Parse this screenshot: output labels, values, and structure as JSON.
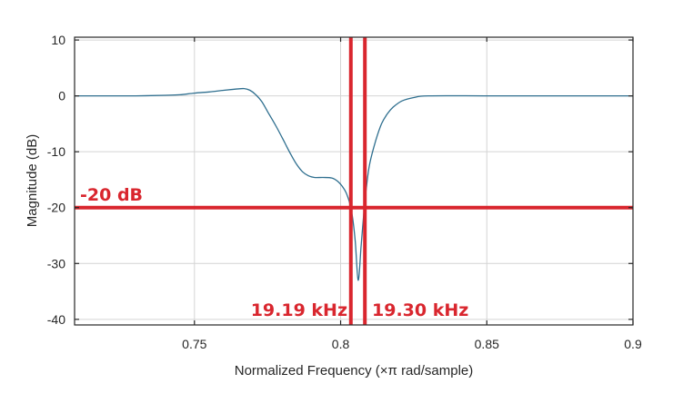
{
  "chart_data": {
    "type": "line",
    "title": "",
    "xlabel": "Normalized Frequency (×π rad/sample)",
    "ylabel": "Magnitude (dB)",
    "xlim": [
      0.709,
      0.9
    ],
    "ylim": [
      -41,
      10.5
    ],
    "xticks": [
      0.75,
      0.8,
      0.85,
      0.9
    ],
    "xtick_labels": [
      "0.75",
      "0.8",
      "0.85",
      "0.9"
    ],
    "yticks": [
      10,
      0,
      -10,
      -20,
      -30,
      -40
    ],
    "ytick_labels": [
      "10",
      "0",
      "-10",
      "-20",
      "-30",
      "-40"
    ],
    "grid": true,
    "series": [
      {
        "name": "magnitude",
        "color": "#2f6f8f",
        "x": [
          0.709,
          0.72,
          0.73,
          0.74,
          0.745,
          0.75,
          0.755,
          0.76,
          0.764,
          0.767,
          0.769,
          0.771,
          0.773,
          0.775,
          0.778,
          0.781,
          0.783,
          0.785,
          0.787,
          0.789,
          0.791,
          0.794,
          0.797,
          0.799,
          0.801,
          0.802,
          0.803,
          0.804,
          0.805,
          0.806,
          0.807,
          0.808,
          0.809,
          0.81,
          0.812,
          0.814,
          0.816,
          0.818,
          0.821,
          0.825,
          0.83,
          0.85,
          0.87,
          0.9
        ],
        "y": [
          0,
          0,
          0,
          0.1,
          0.2,
          0.5,
          0.7,
          1.0,
          1.2,
          1.3,
          1.0,
          0.2,
          -1.0,
          -2.8,
          -5.5,
          -8.5,
          -10.5,
          -12.3,
          -13.6,
          -14.3,
          -14.6,
          -14.6,
          -14.7,
          -15.3,
          -16.5,
          -17.5,
          -19.0,
          -21.5,
          -26.0,
          -33.0,
          -27.0,
          -20.5,
          -15.5,
          -12.0,
          -8.0,
          -5.0,
          -3.2,
          -2.0,
          -0.9,
          -0.3,
          0,
          0,
          0,
          0
        ]
      }
    ],
    "annotations": {
      "hline": {
        "y": -20,
        "label": "-20 dB",
        "color": "#d9262e"
      },
      "vlines": [
        {
          "x": 0.8035,
          "label": "19.19 kHz",
          "color": "#d9262e"
        },
        {
          "x": 0.8083,
          "label": "19.30 kHz",
          "color": "#d9262e"
        }
      ]
    }
  }
}
